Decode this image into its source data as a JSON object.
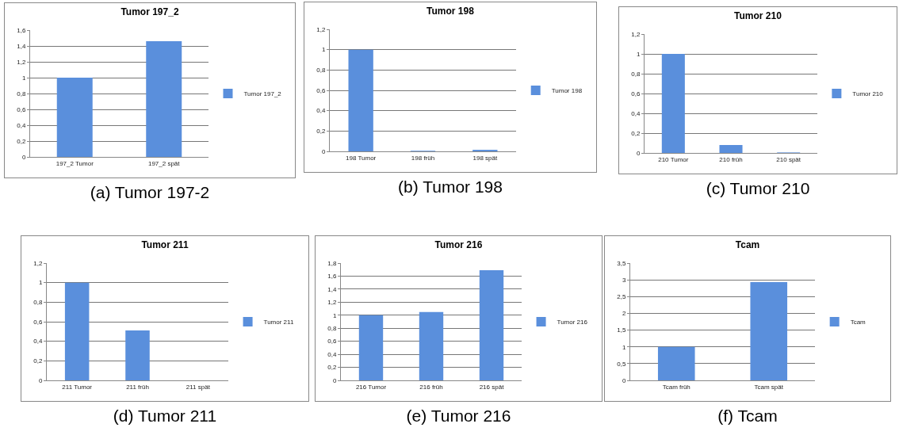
{
  "chart_data": [
    {
      "type": "bar",
      "title": "Tumor 197_2",
      "categories": [
        "197_2 Tumor",
        "197_2 spät"
      ],
      "series": [
        {
          "name": "Tumor 197_2",
          "color": "#5a8fdc",
          "values": [
            1,
            1.46
          ]
        }
      ],
      "ylim": [
        0,
        1.6
      ],
      "yticks": [
        0,
        {
          "value": 0.2,
          "label": "0,2"
        },
        {
          "value": 0.4,
          "label": "0,4"
        },
        {
          "value": 0.6,
          "label": "0,6"
        },
        {
          "value": 0.8,
          "label": "0,8"
        },
        1,
        {
          "value": 1.2,
          "label": "1,2"
        },
        {
          "value": 1.4,
          "label": "1,4"
        },
        {
          "value": 1.6,
          "label": "1,6"
        }
      ],
      "grid": "y",
      "legend": "right",
      "annotations": [
        "(a) Tumor 197-2"
      ]
    },
    {
      "type": "bar",
      "title": "Tumor 198",
      "categories": [
        "198 Tumor",
        "198 früh",
        "198 spät"
      ],
      "series": [
        {
          "name": "Tumor 198",
          "color": "#5a8fdc",
          "values": [
            1,
            0.005,
            0.015
          ]
        }
      ],
      "ylim": [
        0,
        1.2
      ],
      "yticks": [
        0,
        {
          "value": 0.2,
          "label": "0,2"
        },
        {
          "value": 0.4,
          "label": "0,4"
        },
        {
          "value": 0.6,
          "label": "0,6"
        },
        {
          "value": 0.8,
          "label": "0,8"
        },
        1,
        {
          "value": 1.2,
          "label": "1,2"
        }
      ],
      "grid": "y",
      "legend": "right",
      "annotations": [
        "(b) Tumor 198"
      ]
    },
    {
      "type": "bar",
      "title": "Tumor 210",
      "categories": [
        "210 Tumor",
        "210 früh",
        "210 spät"
      ],
      "series": [
        {
          "name": "Tumor 210",
          "color": "#5a8fdc",
          "values": [
            1,
            0.08,
            0.005
          ]
        }
      ],
      "ylim": [
        0,
        1.2
      ],
      "yticks": [
        0,
        {
          "value": 0.2,
          "label": "0,2"
        },
        {
          "value": 0.4,
          "label": "0,4"
        },
        {
          "value": 0.6,
          "label": "0,6"
        },
        {
          "value": 0.8,
          "label": "0,8"
        },
        1,
        {
          "value": 1.2,
          "label": "1,2"
        }
      ],
      "grid": "y",
      "legend": "right",
      "annotations": [
        "(c) Tumor 210"
      ]
    },
    {
      "type": "bar",
      "title": "Tumor 211",
      "categories": [
        "211 Tumor",
        "211 früh",
        "211 spät"
      ],
      "series": [
        {
          "name": "Tumor 211",
          "color": "#5a8fdc",
          "values": [
            1,
            0.51,
            0
          ]
        }
      ],
      "ylim": [
        0,
        1.2
      ],
      "yticks": [
        0,
        {
          "value": 0.2,
          "label": "0,2"
        },
        {
          "value": 0.4,
          "label": "0,4"
        },
        {
          "value": 0.6,
          "label": "0,6"
        },
        {
          "value": 0.8,
          "label": "0,8"
        },
        1,
        {
          "value": 1.2,
          "label": "1,2"
        }
      ],
      "grid": "y",
      "legend": "right",
      "annotations": [
        "(d) Tumor 211"
      ]
    },
    {
      "type": "bar",
      "title": "Tumor 216",
      "categories": [
        "216 Tumor",
        "216 früh",
        "216 spät"
      ],
      "series": [
        {
          "name": "Tumor 216",
          "color": "#5a8fdc",
          "values": [
            1,
            1.05,
            1.69
          ]
        }
      ],
      "ylim": [
        0,
        1.8
      ],
      "yticks": [
        0,
        {
          "value": 0.2,
          "label": "0,2"
        },
        {
          "value": 0.4,
          "label": "0,4"
        },
        {
          "value": 0.6,
          "label": "0,6"
        },
        {
          "value": 0.8,
          "label": "0,8"
        },
        1,
        {
          "value": 1.2,
          "label": "1,2"
        },
        {
          "value": 1.4,
          "label": "1,4"
        },
        {
          "value": 1.6,
          "label": "1,6"
        },
        {
          "value": 1.8,
          "label": "1,8"
        }
      ],
      "grid": "y",
      "legend": "right",
      "annotations": [
        "(e) Tumor 216"
      ]
    },
    {
      "type": "bar",
      "title": "Tcam",
      "categories": [
        "Tcam früh",
        "Tcam spät"
      ],
      "series": [
        {
          "name": "Tcam",
          "color": "#5a8fdc",
          "values": [
            1,
            2.93
          ]
        }
      ],
      "ylim": [
        0,
        3.5
      ],
      "yticks": [
        0,
        {
          "value": 0.5,
          "label": "0,5"
        },
        1,
        {
          "value": 1.5,
          "label": "1,5"
        },
        2,
        {
          "value": 2.5,
          "label": "2,5"
        },
        3,
        {
          "value": 3.5,
          "label": "3,5"
        }
      ],
      "grid": "y",
      "legend": "right",
      "annotations": [
        "(f) Tcam"
      ]
    }
  ]
}
